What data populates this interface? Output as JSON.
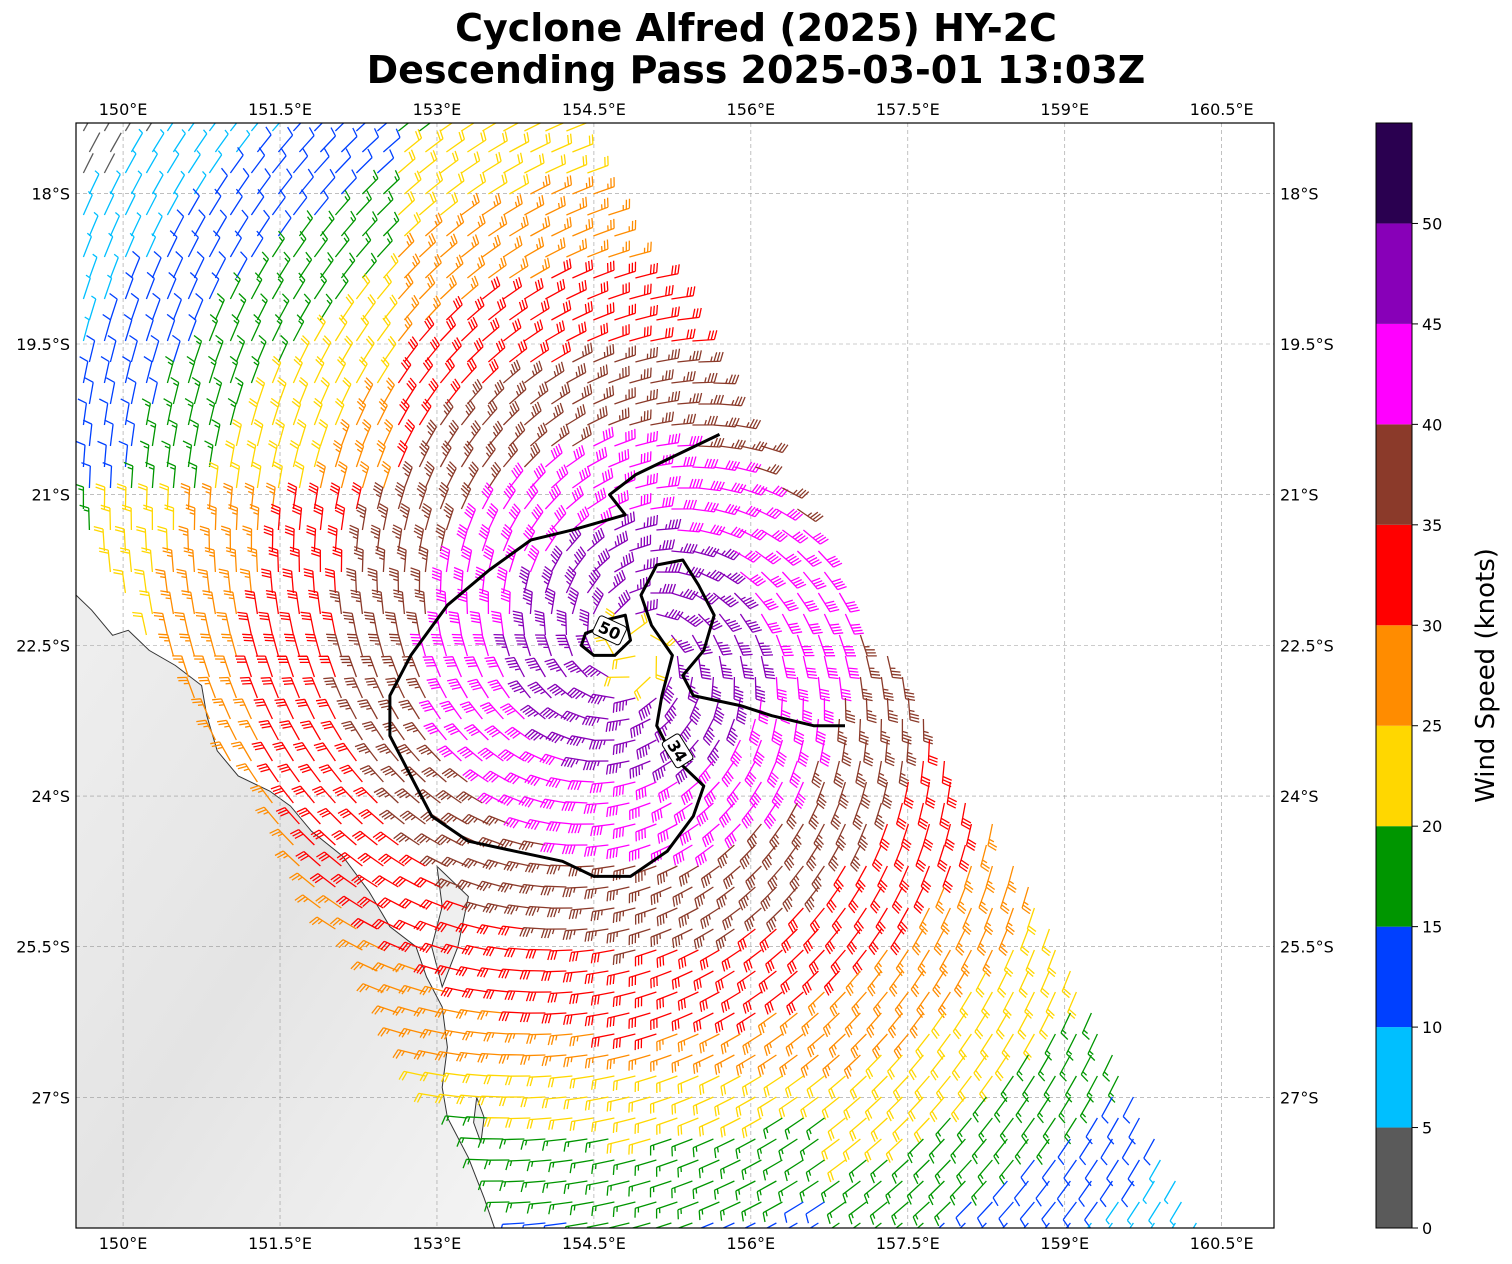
{
  "title": {
    "line1": "Cyclone Alfred (2025) HY-2C",
    "line2": "Descending Pass 2025-03-01 13:03Z"
  },
  "map": {
    "lon_range": [
      149.55,
      161.0
    ],
    "lat_range": [
      -28.3,
      -17.3
    ],
    "gridlines": true,
    "lon_ticks": [
      {
        "value": 150.0,
        "label": "150°E"
      },
      {
        "value": 151.5,
        "label": "151.5°E"
      },
      {
        "value": 153.0,
        "label": "153°E"
      },
      {
        "value": 154.5,
        "label": "154.5°E"
      },
      {
        "value": 156.0,
        "label": "156°E"
      },
      {
        "value": 157.5,
        "label": "157.5°E"
      },
      {
        "value": 159.0,
        "label": "159°E"
      },
      {
        "value": 160.5,
        "label": "160.5°E"
      }
    ],
    "lat_ticks": [
      {
        "value": -18.0,
        "label": "18°S"
      },
      {
        "value": -19.5,
        "label": "19.5°S"
      },
      {
        "value": -21.0,
        "label": "21°S"
      },
      {
        "value": -22.5,
        "label": "22.5°S"
      },
      {
        "value": -24.0,
        "label": "24°S"
      },
      {
        "value": -25.5,
        "label": "25.5°S"
      },
      {
        "value": -27.0,
        "label": "27°S"
      }
    ],
    "wind_field": {
      "center": [
        154.9,
        -22.55
      ],
      "units": "knots",
      "pass_edges": [
        [
          149.55,
          -17.3
        ],
        [
          154.2,
          -17.3
        ],
        [
          158.3,
          -24.2
        ],
        [
          160.4,
          -28.3
        ],
        [
          153.8,
          -28.3
        ],
        [
          149.55,
          -21.3
        ]
      ]
    },
    "contours": [
      {
        "value": "34",
        "points": [
          [
            155.7,
            -20.4
          ],
          [
            155.3,
            -20.6
          ],
          [
            154.9,
            -20.8
          ],
          [
            154.65,
            -21.0
          ],
          [
            154.8,
            -21.2
          ],
          [
            154.3,
            -21.35
          ],
          [
            153.9,
            -21.45
          ],
          [
            153.5,
            -21.75
          ],
          [
            153.1,
            -22.1
          ],
          [
            152.75,
            -22.6
          ],
          [
            152.55,
            -23.0
          ],
          [
            152.55,
            -23.4
          ],
          [
            152.75,
            -23.8
          ],
          [
            152.95,
            -24.2
          ],
          [
            153.3,
            -24.45
          ],
          [
            153.75,
            -24.55
          ],
          [
            154.2,
            -24.65
          ],
          [
            154.5,
            -24.8
          ],
          [
            154.85,
            -24.8
          ],
          [
            155.2,
            -24.55
          ],
          [
            155.45,
            -24.2
          ],
          [
            155.55,
            -23.9
          ],
          [
            155.35,
            -23.7
          ],
          [
            155.2,
            -23.5
          ],
          [
            155.1,
            -23.3
          ],
          [
            155.15,
            -23.0
          ],
          [
            155.25,
            -22.6
          ],
          [
            155.05,
            -22.3
          ],
          [
            154.95,
            -22.0
          ],
          [
            155.1,
            -21.7
          ],
          [
            155.35,
            -21.65
          ],
          [
            155.5,
            -21.9
          ],
          [
            155.65,
            -22.2
          ],
          [
            155.55,
            -22.55
          ],
          [
            155.35,
            -22.8
          ],
          [
            155.45,
            -23.0
          ],
          [
            155.9,
            -23.1
          ],
          [
            156.2,
            -23.2
          ],
          [
            156.6,
            -23.3
          ],
          [
            156.9,
            -23.3
          ]
        ],
        "label_at": [
          155.3,
          -23.55
        ]
      },
      {
        "value": "50",
        "points": [
          [
            154.5,
            -22.35
          ],
          [
            154.6,
            -22.25
          ],
          [
            154.8,
            -22.2
          ],
          [
            154.85,
            -22.45
          ],
          [
            154.7,
            -22.6
          ],
          [
            154.5,
            -22.6
          ],
          [
            154.38,
            -22.5
          ],
          [
            154.42,
            -22.38
          ],
          [
            154.5,
            -22.35
          ]
        ],
        "label_at": [
          154.65,
          -22.35
        ]
      }
    ]
  },
  "colorbar": {
    "label": "Wind Speed (knots)",
    "levels": [
      0,
      5,
      10,
      15,
      20,
      25,
      30,
      35,
      40,
      45,
      50,
      55
    ],
    "colors": [
      "#5a5a5a",
      "#00bfff",
      "#0040ff",
      "#009600",
      "#ffd700",
      "#ff8c00",
      "#ff0000",
      "#8b3a2a",
      "#ff00ff",
      "#8800b8",
      "#2a0050"
    ],
    "tick_labels": [
      "0",
      "5",
      "10",
      "15",
      "20",
      "25",
      "30",
      "35",
      "40",
      "45",
      "50"
    ]
  }
}
